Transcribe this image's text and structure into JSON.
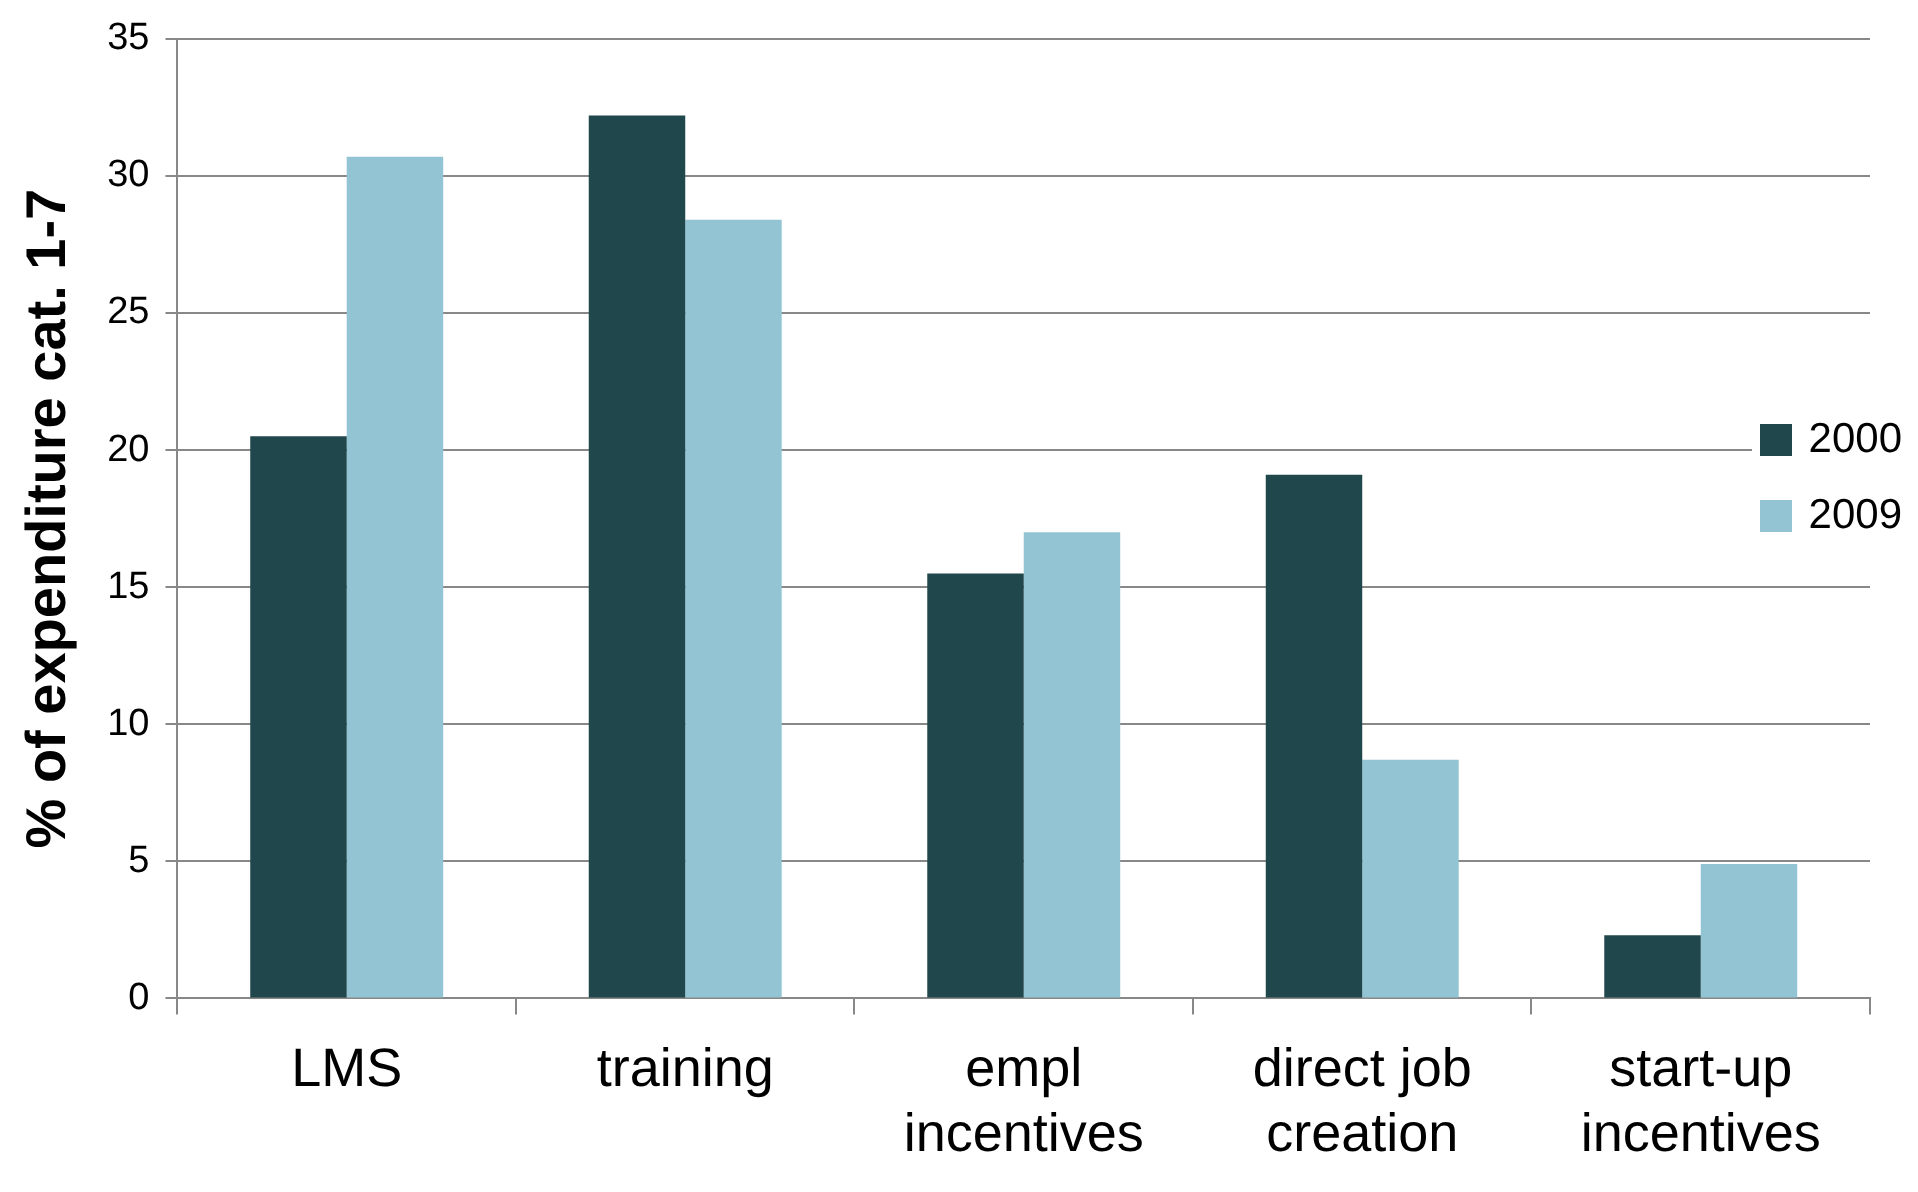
{
  "chart_data": {
    "type": "bar",
    "ylabel": "% of expenditure cat. 1-7",
    "categories": [
      "LMS",
      "training",
      "empl\nincentives",
      "direct job\ncreation",
      "start-up\nincentives"
    ],
    "series": [
      {
        "name": "2000",
        "color": "#20474b",
        "values": [
          20.5,
          32.2,
          15.5,
          19.1,
          2.3
        ]
      },
      {
        "name": "2009",
        "color": "#93c4d4",
        "values": [
          30.7,
          28.4,
          17,
          8.7,
          4.9
        ]
      }
    ],
    "ylim": [
      0,
      35
    ],
    "yticks": [
      0,
      5,
      10,
      15,
      20,
      25,
      30,
      35
    ],
    "grid": "y",
    "legend": "right"
  }
}
